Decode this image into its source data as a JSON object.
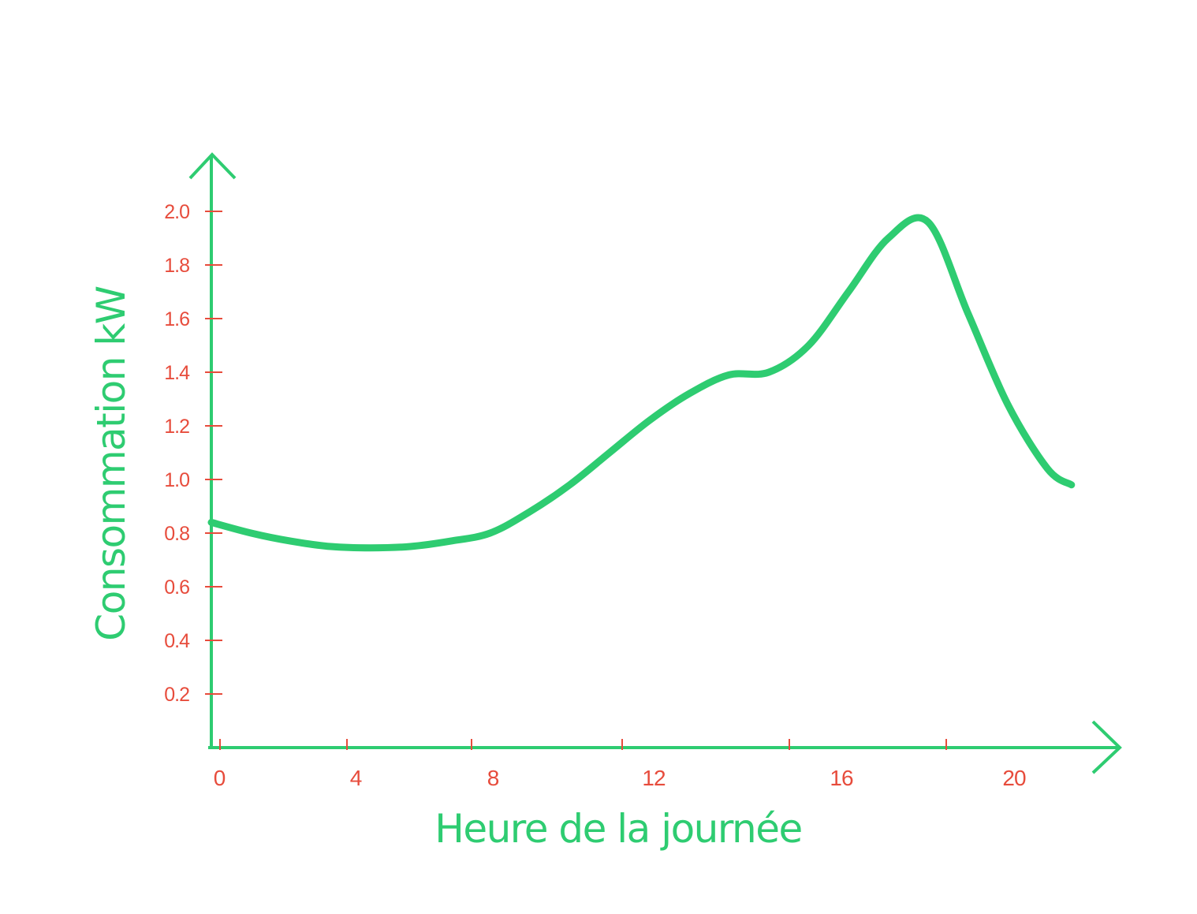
{
  "chart_data": {
    "type": "line",
    "title": "",
    "xlabel": "Heure de la journée",
    "ylabel": "Consommation kW",
    "x_ticks": [
      {
        "value": 0,
        "label": "0"
      },
      {
        "value": 4,
        "label": "4"
      },
      {
        "value": 8,
        "label": "8"
      },
      {
        "value": 12,
        "label": "12"
      },
      {
        "value": 16,
        "label": "16"
      },
      {
        "value": 20,
        "label": "20"
      }
    ],
    "y_ticks": [
      {
        "value": 0.2,
        "label": "0.2"
      },
      {
        "value": 0.4,
        "label": "0.4"
      },
      {
        "value": 0.6,
        "label": "0.6"
      },
      {
        "value": 0.8,
        "label": "0.8"
      },
      {
        "value": 1.0,
        "label": "1.0"
      },
      {
        "value": 1.2,
        "label": "1.2"
      },
      {
        "value": 1.4,
        "label": "1.4"
      },
      {
        "value": 1.6,
        "label": "1.6"
      },
      {
        "value": 1.8,
        "label": "1.8"
      },
      {
        "value": 2.0,
        "label": "2.0"
      }
    ],
    "xlim": [
      0,
      22
    ],
    "ylim": [
      0,
      2.2
    ],
    "grid": false,
    "series": [
      {
        "x": [
          0,
          1,
          2,
          3,
          4,
          5,
          6,
          7,
          8,
          9,
          10,
          11,
          12,
          13,
          14,
          15,
          16,
          17,
          18,
          19,
          20,
          21,
          21.6
        ],
        "y": [
          0.84,
          0.8,
          0.77,
          0.75,
          0.745,
          0.75,
          0.77,
          0.8,
          0.88,
          0.98,
          1.1,
          1.22,
          1.32,
          1.39,
          1.4,
          1.5,
          1.7,
          1.9,
          1.96,
          1.62,
          1.28,
          1.04,
          0.98
        ]
      }
    ],
    "colors": {
      "axis": "#2ecc71",
      "line": "#2ecc71",
      "tick_label": "#e74c3c",
      "tick_mark": "#e74c3c",
      "axis_title": "#2ecc71"
    }
  }
}
